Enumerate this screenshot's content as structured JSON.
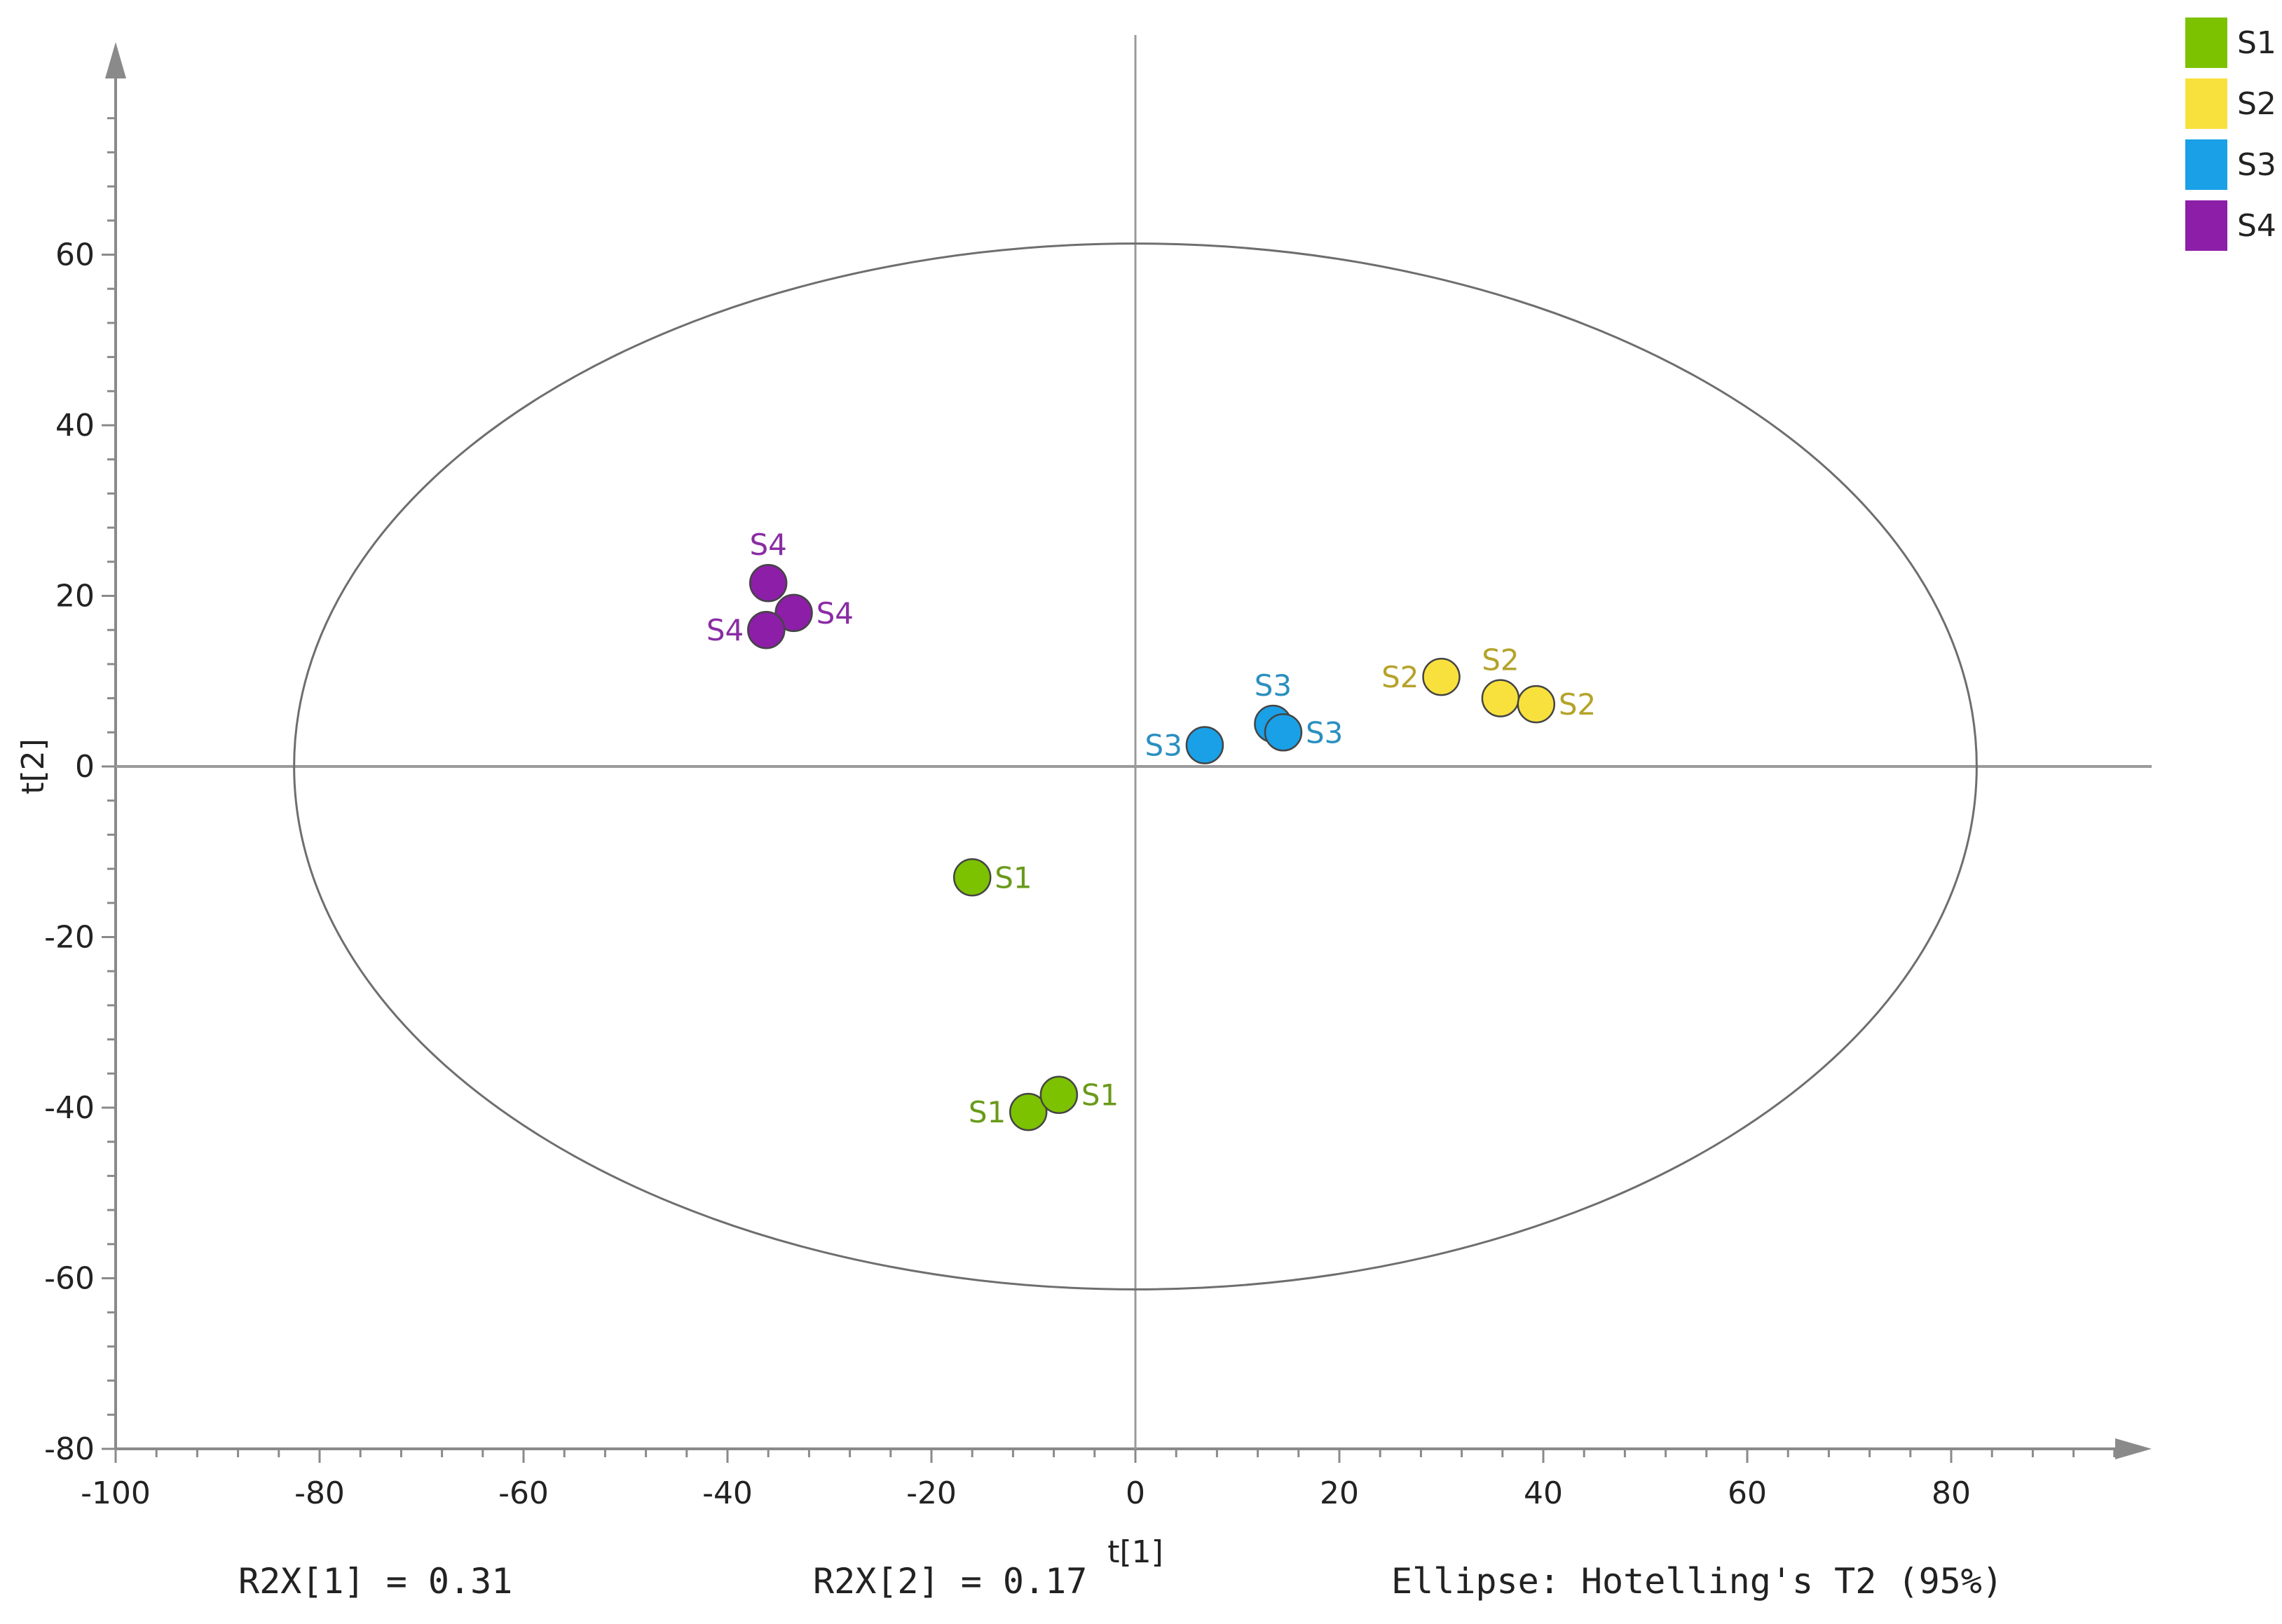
{
  "chart_data": {
    "type": "scatter",
    "title": "",
    "xlabel": "t[1]",
    "ylabel": "t[2]",
    "xlim": [
      -100,
      100
    ],
    "ylim": [
      -80,
      80
    ],
    "xticks": [
      -100,
      -80,
      -60,
      -40,
      -20,
      0,
      20,
      40,
      60,
      80
    ],
    "yticks": [
      -80,
      -60,
      -40,
      -20,
      0,
      20,
      40,
      60
    ],
    "ellipse": {
      "label": "Ellipse: Hotelling's T2 (95%)",
      "rx": 82.5,
      "ry": 61.3
    },
    "series": [
      {
        "name": "S1",
        "color": "#7cc200",
        "label_color": "#6a9a1a",
        "points": [
          {
            "x": -16,
            "y": -13,
            "label": "S1",
            "label_side": "right"
          },
          {
            "x": -10.5,
            "y": -40.5,
            "label": "S1",
            "label_side": "left"
          },
          {
            "x": -7.5,
            "y": -38.5,
            "label": "S1",
            "label_side": "right"
          }
        ]
      },
      {
        "name": "S2",
        "color": "#f8e13c",
        "label_color": "#b5a32a",
        "points": [
          {
            "x": 30,
            "y": 10.5,
            "label": "S2",
            "label_side": "left"
          },
          {
            "x": 35.8,
            "y": 8,
            "label": "S2",
            "label_side": "above"
          },
          {
            "x": 39.3,
            "y": 7.3,
            "label": "S2",
            "label_side": "right"
          }
        ]
      },
      {
        "name": "S3",
        "color": "#19a0e6",
        "label_color": "#2a8fc0",
        "points": [
          {
            "x": 6.8,
            "y": 2.5,
            "label": "S3",
            "label_side": "left"
          },
          {
            "x": 13.5,
            "y": 5,
            "label": "S3",
            "label_side": "above"
          },
          {
            "x": 14.5,
            "y": 4,
            "label": "S3",
            "label_side": "right"
          }
        ]
      },
      {
        "name": "S4",
        "color": "#8c1ea8",
        "label_color": "#8a2da3",
        "points": [
          {
            "x": -36,
            "y": 21.5,
            "label": "S4",
            "label_side": "above"
          },
          {
            "x": -33.5,
            "y": 18,
            "label": "S4",
            "label_side": "right"
          },
          {
            "x": -36.2,
            "y": 16,
            "label": "S4",
            "label_side": "left"
          }
        ]
      }
    ],
    "legend": {
      "position": "top-right",
      "entries": [
        "S1",
        "S2",
        "S3",
        "S4"
      ]
    },
    "footer": {
      "r2x1": "R2X[1] = 0.31",
      "r2x2": "R2X[2] = 0.17",
      "ellipse_note": "Ellipse: Hotelling's T2 (95%)"
    }
  }
}
